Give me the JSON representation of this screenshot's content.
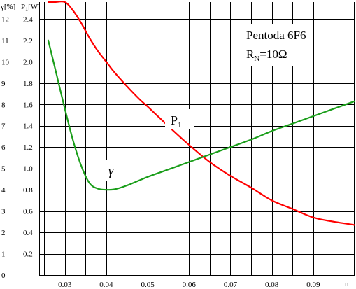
{
  "chart_data": {
    "type": "line",
    "title": "Pentoda 6F6",
    "subtitle_main": "R",
    "subtitle_sub": "N",
    "subtitle_rest": "=10Ω",
    "xlabel": "n",
    "ylabel_left": "γ[%]",
    "ylabel_right_main": "P",
    "ylabel_right_sub": "1",
    "ylabel_right_unit": "[W]",
    "xlim": [
      0.0238,
      0.1
    ],
    "ylim_gamma": [
      0,
      12.8
    ],
    "ylim_power": [
      0,
      2.56
    ],
    "x_ticks": [
      "0.03",
      "0.04",
      "0.05",
      "0.06",
      "0.07",
      "0.08",
      "0.09"
    ],
    "gamma_ticks": [
      "0",
      "1",
      "2",
      "3",
      "4",
      "5",
      "6",
      "7",
      "8",
      "9",
      "10",
      "11",
      "12"
    ],
    "power_ticks": [
      "0.2",
      "0.4",
      "0.6",
      "0.8",
      "1.0",
      "1.2",
      "1.4",
      "1.6",
      "1.8",
      "2.0",
      "2.2",
      "2.4"
    ],
    "grid": true,
    "series": [
      {
        "name": "P",
        "name_sub": "1",
        "axis": "power",
        "color": "#ff0000",
        "x": [
          0.026,
          0.0275,
          0.03,
          0.032,
          0.034,
          0.036,
          0.038,
          0.04,
          0.042,
          0.045,
          0.048,
          0.05,
          0.053,
          0.056,
          0.06,
          0.065,
          0.07,
          0.075,
          0.08,
          0.085,
          0.09,
          0.095,
          0.1
        ],
        "y": [
          2.56,
          2.56,
          2.56,
          2.48,
          2.36,
          2.22,
          2.1,
          2.0,
          1.9,
          1.77,
          1.65,
          1.58,
          1.47,
          1.36,
          1.22,
          1.06,
          0.93,
          0.82,
          0.7,
          0.62,
          0.54,
          0.5,
          0.47
        ]
      },
      {
        "name": "γ",
        "axis": "gamma",
        "color": "#1a9e1a",
        "x": [
          0.026,
          0.028,
          0.03,
          0.032,
          0.034,
          0.036,
          0.038,
          0.04,
          0.042,
          0.045,
          0.05,
          0.055,
          0.06,
          0.065,
          0.07,
          0.075,
          0.08,
          0.085,
          0.09,
          0.095,
          0.1
        ],
        "y": [
          11.0,
          9.4,
          7.8,
          6.3,
          5.1,
          4.3,
          4.05,
          4.0,
          4.02,
          4.2,
          4.6,
          4.95,
          5.3,
          5.65,
          6.0,
          6.35,
          6.75,
          7.1,
          7.45,
          7.8,
          8.15
        ]
      }
    ],
    "title_box": true,
    "gamma_axis_zero": "0"
  }
}
